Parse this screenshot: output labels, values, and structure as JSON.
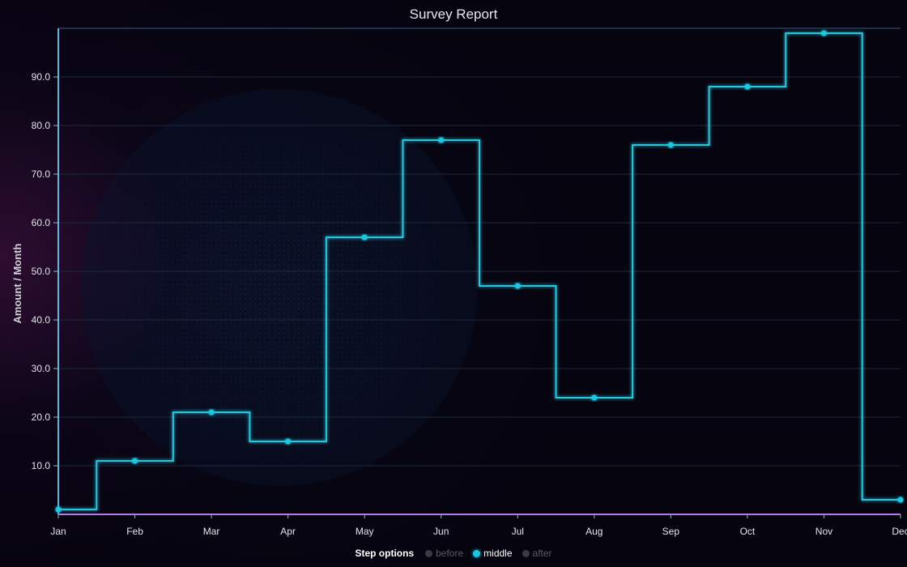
{
  "chart_data": {
    "type": "line",
    "title": "Survey Report",
    "ylabel": "Amount / Month",
    "xlabel": "",
    "categories": [
      "Jan",
      "Feb",
      "Mar",
      "Apr",
      "May",
      "Jun",
      "Jul",
      "Aug",
      "Sep",
      "Oct",
      "Nov",
      "Dec"
    ],
    "series": [
      {
        "values": [
          1,
          11,
          21,
          15,
          57,
          77,
          47,
          24,
          76,
          88,
          99,
          3
        ]
      }
    ],
    "ylim": [
      0,
      100
    ],
    "yticks": [
      "10.0",
      "20.0",
      "30.0",
      "40.0",
      "50.0",
      "60.0",
      "70.0",
      "80.0",
      "90.0"
    ],
    "step": "middle",
    "grid": true,
    "colors": {
      "line": "#2bc4dc",
      "point": "#1ec7e0",
      "axis_left": "#5fb6e0",
      "axis_bottom": "#b779e6",
      "grid": "#1c2a3a"
    }
  },
  "legend": {
    "title": "Step options",
    "items": [
      {
        "label": "before",
        "active": false
      },
      {
        "label": "middle",
        "active": true
      },
      {
        "label": "after",
        "active": false
      }
    ]
  }
}
